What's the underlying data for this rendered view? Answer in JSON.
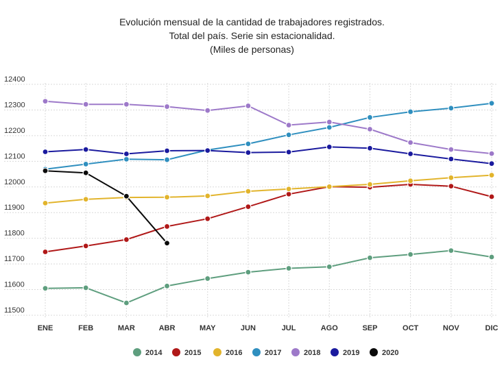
{
  "chart_data": {
    "type": "line",
    "title": "Evolución mensual de la cantidad de trabajadores registrados.",
    "subtitle": "Total del país. Serie sin estacionalidad.",
    "unit": "(Miles de personas)",
    "xlabel": "",
    "ylabel": "",
    "categories": [
      "ENE",
      "FEB",
      "MAR",
      "ABR",
      "MAY",
      "JUN",
      "JUL",
      "AGO",
      "SEP",
      "OCT",
      "NOV",
      "DIC"
    ],
    "ylim": [
      11500,
      12400
    ],
    "yticks": [
      12400,
      12300,
      12200,
      12100,
      12000,
      11900,
      11800,
      11700,
      11600,
      11500
    ],
    "grid": true,
    "legend_position": "bottom",
    "series": [
      {
        "name": "2014",
        "color": "#5e9e7e",
        "values": [
          11605,
          11607,
          11548,
          11614,
          11643,
          11668,
          11683,
          11689,
          11724,
          11737,
          11752,
          11727
        ]
      },
      {
        "name": "2015",
        "color": "#b01818",
        "values": [
          11747,
          11770,
          11795,
          11846,
          11876,
          11923,
          11972,
          12001,
          11999,
          12010,
          12003,
          11962
        ]
      },
      {
        "name": "2016",
        "color": "#e2b42c",
        "values": [
          11937,
          11952,
          11959,
          11960,
          11965,
          11983,
          11992,
          12001,
          12010,
          12024,
          12036,
          12046
        ]
      },
      {
        "name": "2017",
        "color": "#2f8fbf",
        "values": [
          12069,
          12089,
          12108,
          12106,
          12144,
          12168,
          12203,
          12232,
          12271,
          12293,
          12307,
          12326
        ]
      },
      {
        "name": "2018",
        "color": "#9d79c9",
        "values": [
          12334,
          12322,
          12322,
          12313,
          12298,
          12316,
          12241,
          12253,
          12225,
          12173,
          12146,
          12130
        ]
      },
      {
        "name": "2019",
        "color": "#1a1a9e",
        "values": [
          12137,
          12146,
          12129,
          12141,
          12142,
          12134,
          12136,
          12156,
          12151,
          12129,
          12109,
          12091
        ]
      },
      {
        "name": "2020",
        "color": "#0a0a0a",
        "values": [
          12063,
          12055,
          11964,
          11781,
          null,
          null,
          null,
          null,
          null,
          null,
          null,
          null
        ]
      }
    ]
  }
}
